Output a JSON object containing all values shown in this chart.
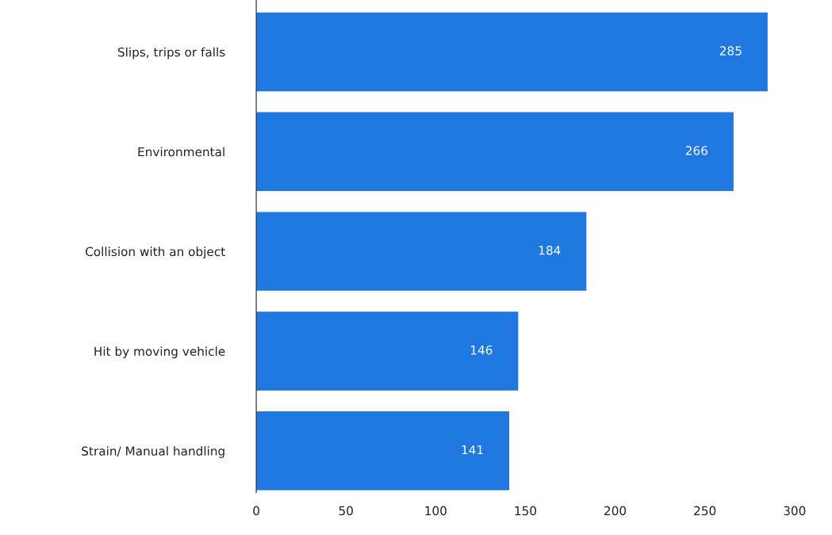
{
  "chart_data": {
    "type": "bar",
    "orientation": "horizontal",
    "categories": [
      "Slips, trips or falls",
      "Environmental",
      "Collision with an object",
      "Hit by moving vehicle",
      "Strain/ Manual handling"
    ],
    "values": [
      285,
      266,
      184,
      146,
      141
    ],
    "color": "#1f78e0",
    "xlim": [
      0,
      300
    ],
    "xticks": [
      0,
      50,
      100,
      150,
      200,
      250,
      300
    ],
    "data_labels": true,
    "grid": false,
    "legend": false
  }
}
